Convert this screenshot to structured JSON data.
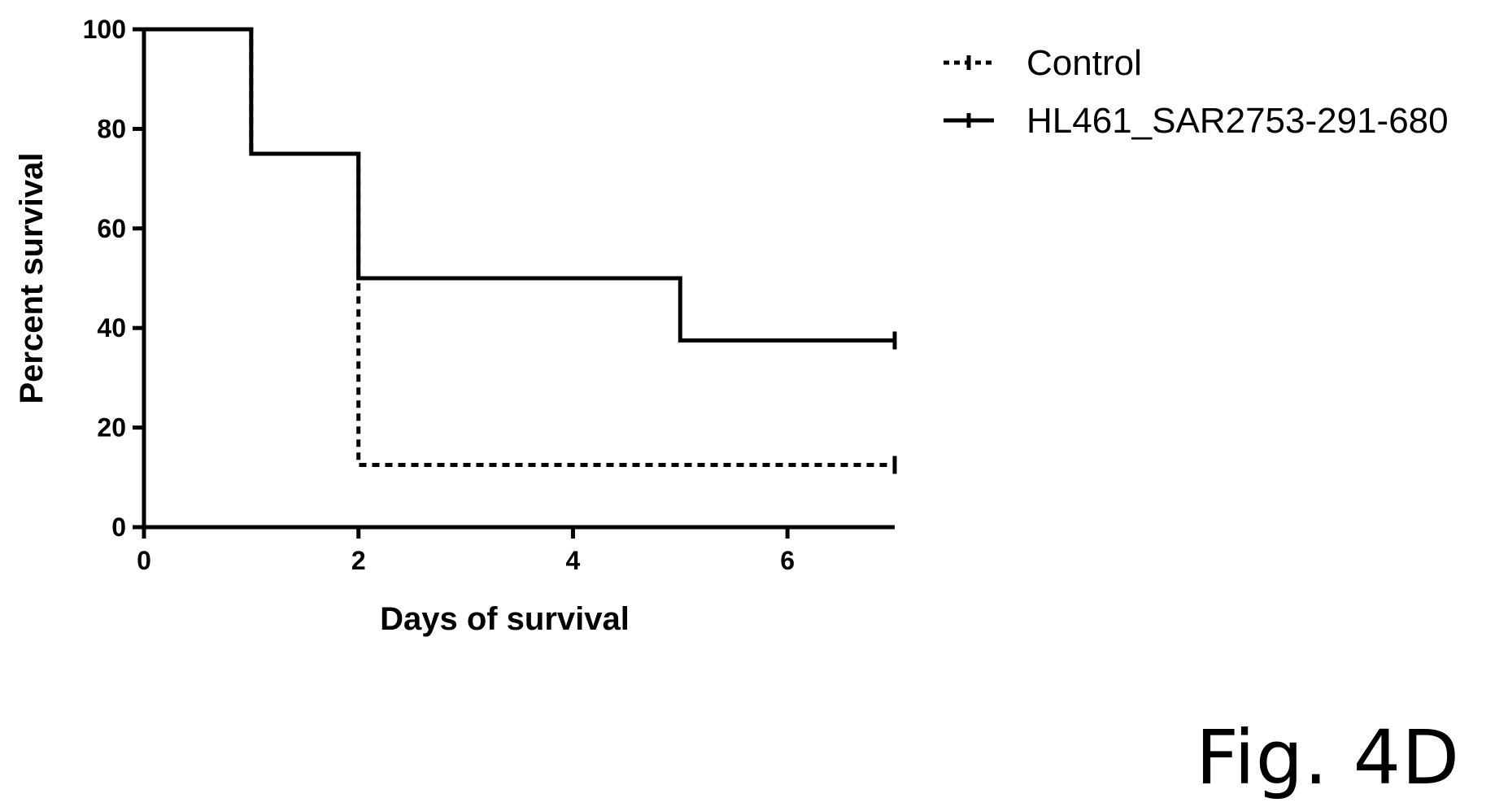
{
  "figure_label": "Fig. 4D",
  "chart_data": {
    "type": "line",
    "step": true,
    "xlabel": "Days of survival",
    "ylabel": "Percent survival",
    "xlim": [
      0,
      7
    ],
    "ylim": [
      0,
      100
    ],
    "x_ticks": [
      0,
      2,
      4,
      6
    ],
    "y_ticks": [
      0,
      20,
      40,
      60,
      80,
      100
    ],
    "grid": false,
    "legend_position": "top-right",
    "series": [
      {
        "name": "Control",
        "style": "dotted",
        "color": "#000000",
        "x": [
          0,
          1,
          2,
          7
        ],
        "y": [
          100,
          75,
          12.5,
          12.5
        ],
        "censored_at": [
          7
        ]
      },
      {
        "name": "HL461_SAR2753-291-680",
        "style": "solid",
        "color": "#000000",
        "x": [
          0,
          1,
          2,
          5,
          7
        ],
        "y": [
          100,
          75,
          50,
          37.5,
          37.5
        ],
        "censored_at": [
          7
        ]
      }
    ]
  }
}
